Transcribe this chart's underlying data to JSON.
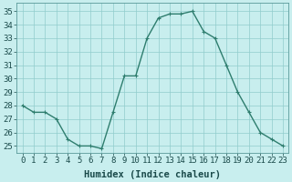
{
  "x": [
    0,
    1,
    2,
    3,
    4,
    5,
    6,
    7,
    8,
    9,
    10,
    11,
    12,
    13,
    14,
    15,
    16,
    17,
    18,
    19,
    20,
    21,
    22,
    23
  ],
  "y": [
    28,
    27.5,
    27.5,
    27,
    25.5,
    25,
    25,
    24.8,
    27.5,
    30.2,
    30.2,
    33,
    34.5,
    34.8,
    34.8,
    35,
    33.5,
    33,
    31,
    29,
    27.5,
    26,
    25.5,
    25
  ],
  "line_color": "#2e7d6e",
  "marker_color": "#2e7d6e",
  "bg_color": "#c8eeee",
  "grid_color": "#90cccc",
  "xlabel": "Humidex (Indice chaleur)",
  "ylim": [
    24.5,
    35.6
  ],
  "xlim": [
    -0.5,
    23.5
  ],
  "yticks": [
    25,
    26,
    27,
    28,
    29,
    30,
    31,
    32,
    33,
    34,
    35
  ],
  "xtick_labels": [
    "0",
    "1",
    "2",
    "3",
    "4",
    "5",
    "6",
    "7",
    "8",
    "9",
    "10",
    "11",
    "12",
    "13",
    "14",
    "15",
    "16",
    "17",
    "18",
    "19",
    "20",
    "21",
    "22",
    "23"
  ],
  "xlabel_fontsize": 7.5,
  "tick_fontsize": 6.5,
  "marker_size": 2.5,
  "line_width": 1.0
}
